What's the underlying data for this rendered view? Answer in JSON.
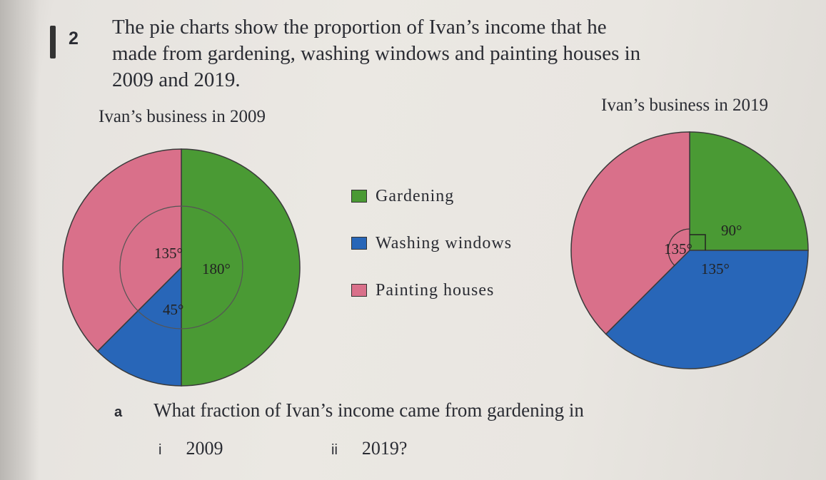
{
  "question": {
    "number": "2",
    "intro_lines": [
      "The pie charts show the proportion of Ivan’s income that he",
      "made from gardening, washing windows and painting houses in",
      "2009 and 2019."
    ],
    "part_a_label": "a",
    "part_a_text": "What fraction of Ivan’s income came from gardening in",
    "sub_i_label": "i",
    "sub_i_text": "2009",
    "sub_ii_label": "ii",
    "sub_ii_text": "2019?"
  },
  "legend": [
    {
      "label": "Gardening",
      "color": "#4a9a34"
    },
    {
      "label": "Washing windows",
      "color": "#2866b8"
    },
    {
      "label": "Painting houses",
      "color": "#d9708a"
    }
  ],
  "chart_data": [
    {
      "type": "pie",
      "title": "Ivan’s business in 2009",
      "categories": [
        "Gardening",
        "Washing windows",
        "Painting houses"
      ],
      "values": [
        180,
        45,
        135
      ],
      "unit": "degrees",
      "value_labels": [
        "180°",
        "45°",
        "135°"
      ],
      "colors": [
        "#4a9a34",
        "#2866b8",
        "#d9708a"
      ]
    },
    {
      "type": "pie",
      "title": "Ivan’s business in 2019",
      "categories": [
        "Gardening",
        "Washing windows",
        "Painting houses"
      ],
      "values": [
        90,
        135,
        135
      ],
      "unit": "degrees",
      "value_labels": [
        "90°",
        "135°",
        "135°"
      ],
      "colors": [
        "#4a9a34",
        "#2866b8",
        "#d9708a"
      ]
    }
  ]
}
